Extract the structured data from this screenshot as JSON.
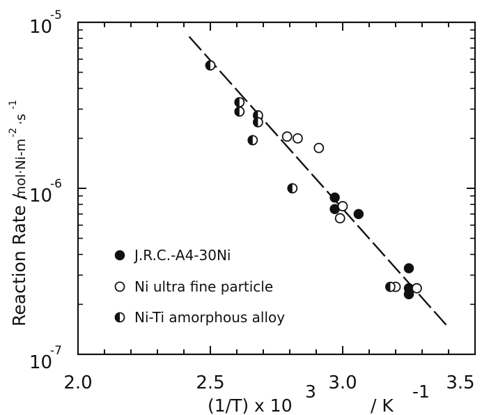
{
  "chart_data": {
    "type": "scatter",
    "xlabel": "(1/T) x 10",
    "xlabel_exp": "3",
    "xlabel_unit": "/ K",
    "xlabel_unit_exp": "-1",
    "ylabel": "Reaction Rate /",
    "ylabel_unit": "mol·Ni-m",
    "ylabel_unit_exp1": "-2",
    "ylabel_unit_mid": "·s",
    "ylabel_unit_exp2": "-1",
    "xlim": [
      2.0,
      3.5
    ],
    "ylim": [
      1e-07,
      1e-05
    ],
    "yscale": "log",
    "grid": false,
    "legend_position": "bottom-left",
    "x_ticks": [
      "2.0",
      "2.5",
      "3.0",
      "3.5"
    ],
    "y_ticks": [
      {
        "base": "10",
        "exp": "-5"
      },
      {
        "base": "10",
        "exp": "-6"
      },
      {
        "base": "10",
        "exp": "-7"
      }
    ],
    "series": [
      {
        "name": "J.R.C.-A4-30Ni",
        "marker": "filled",
        "points": [
          {
            "x": 2.97,
            "y": 8.8e-07
          },
          {
            "x": 2.97,
            "y": 7.5e-07
          },
          {
            "x": 3.06,
            "y": 7e-07
          },
          {
            "x": 3.25,
            "y": 3.3e-07
          },
          {
            "x": 3.25,
            "y": 2.5e-07
          },
          {
            "x": 3.25,
            "y": 2.3e-07
          }
        ]
      },
      {
        "name": "Ni ultra fine particle",
        "marker": "open",
        "points": [
          {
            "x": 2.79,
            "y": 2.05e-06
          },
          {
            "x": 2.83,
            "y": 2e-06
          },
          {
            "x": 2.91,
            "y": 1.75e-06
          },
          {
            "x": 3.0,
            "y": 7.8e-07
          },
          {
            "x": 2.99,
            "y": 6.6e-07
          },
          {
            "x": 3.2,
            "y": 2.55e-07
          },
          {
            "x": 3.28,
            "y": 2.5e-07
          }
        ]
      },
      {
        "name": "Ni-Ti amorphous alloy",
        "marker": "half",
        "points": [
          {
            "x": 2.5,
            "y": 5.5e-06
          },
          {
            "x": 2.61,
            "y": 3.3e-06
          },
          {
            "x": 2.61,
            "y": 2.9e-06
          },
          {
            "x": 2.68,
            "y": 2.75e-06
          },
          {
            "x": 2.68,
            "y": 2.5e-06
          },
          {
            "x": 2.66,
            "y": 1.95e-06
          },
          {
            "x": 2.81,
            "y": 1e-06
          },
          {
            "x": 3.18,
            "y": 2.55e-07
          }
        ]
      }
    ],
    "fit_line": {
      "x": [
        2.42,
        3.4
      ],
      "y": [
        8.2e-06,
        1.45e-07
      ]
    }
  }
}
